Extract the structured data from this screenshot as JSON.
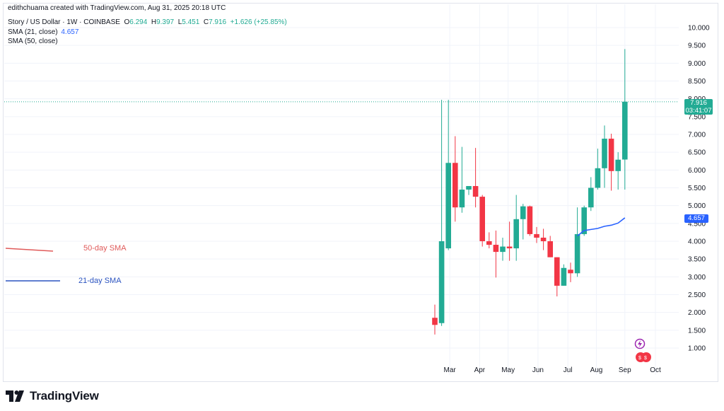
{
  "caption": "edithchuama created with TradingView.com, Aug 31, 2025 20:18 UTC",
  "header": {
    "symbol": "Story / US Dollar · 1W · COINBASE",
    "o_label": "O",
    "o": "6.294",
    "h_label": "H",
    "h": "9.397",
    "l_label": "L",
    "l": "5.451",
    "c_label": "C",
    "c": "7.916",
    "change": "+1.626 (+25.85%)"
  },
  "legend": [
    {
      "label": "SMA (21, close)",
      "value": "4.657"
    },
    {
      "label": "SMA (50, close)",
      "value": ""
    }
  ],
  "annotations": {
    "sma50_label": "50-day SMA",
    "sma21_label": "21-day SMA"
  },
  "price_tags": {
    "last_price": "7.916",
    "countdown": "03:41:07",
    "sma21": "4.657"
  },
  "colors": {
    "up": "#22ab94",
    "down": "#f23645",
    "sma21": "#2962ff",
    "sma50_annotation": "#e05a5a",
    "sma21_annotation": "#2b53c0",
    "grid": "#f0f3fa"
  },
  "footer": {
    "brand": "TradingView"
  },
  "chart_data": {
    "type": "candlestick",
    "ylim": [
      0.5,
      10.5
    ],
    "y_ticks": [
      "1.000",
      "1.500",
      "2.000",
      "2.500",
      "3.000",
      "3.500",
      "4.000",
      "4.500",
      "5.000",
      "5.500",
      "6.000",
      "6.500",
      "7.000",
      "7.500",
      "8.000",
      "8.500",
      "9.000",
      "9.500",
      "10.000"
    ],
    "x_ticks": [
      {
        "label": "Mar",
        "index": 2.2
      },
      {
        "label": "Apr",
        "index": 6.6
      },
      {
        "label": "May",
        "index": 10.8
      },
      {
        "label": "Jun",
        "index": 15.2
      },
      {
        "label": "Jul",
        "index": 19.6
      },
      {
        "label": "Aug",
        "index": 23.8
      },
      {
        "label": "Sep",
        "index": 28.0
      },
      {
        "label": "Oct",
        "index": 32.5
      }
    ],
    "candles": [
      {
        "o": 1.85,
        "h": 2.22,
        "l": 1.38,
        "c": 1.65
      },
      {
        "o": 1.7,
        "h": 7.97,
        "l": 1.62,
        "c": 4.0
      },
      {
        "o": 3.8,
        "h": 7.97,
        "l": 3.75,
        "c": 6.2
      },
      {
        "o": 6.2,
        "h": 6.95,
        "l": 4.55,
        "c": 4.95
      },
      {
        "o": 4.95,
        "h": 6.65,
        "l": 4.8,
        "c": 5.45
      },
      {
        "o": 5.45,
        "h": 5.5,
        "l": 5.3,
        "c": 5.55
      },
      {
        "o": 5.55,
        "h": 6.62,
        "l": 4.95,
        "c": 5.25
      },
      {
        "o": 5.25,
        "h": 5.3,
        "l": 3.85,
        "c": 4.0
      },
      {
        "o": 4.0,
        "h": 4.25,
        "l": 3.8,
        "c": 3.9
      },
      {
        "o": 3.9,
        "h": 4.3,
        "l": 2.98,
        "c": 3.7
      },
      {
        "o": 3.7,
        "h": 4.1,
        "l": 3.45,
        "c": 3.85
      },
      {
        "o": 3.85,
        "h": 4.55,
        "l": 3.45,
        "c": 3.8
      },
      {
        "o": 3.8,
        "h": 5.3,
        "l": 3.45,
        "c": 4.62
      },
      {
        "o": 4.62,
        "h": 5.05,
        "l": 4.05,
        "c": 4.98
      },
      {
        "o": 4.98,
        "h": 5.0,
        "l": 4.15,
        "c": 4.2
      },
      {
        "o": 4.2,
        "h": 4.4,
        "l": 3.95,
        "c": 4.1
      },
      {
        "o": 4.1,
        "h": 4.35,
        "l": 3.75,
        "c": 4.0
      },
      {
        "o": 4.0,
        "h": 4.15,
        "l": 3.55,
        "c": 3.55
      },
      {
        "o": 3.55,
        "h": 3.55,
        "l": 2.45,
        "c": 2.75
      },
      {
        "o": 2.75,
        "h": 3.35,
        "l": 2.75,
        "c": 3.25
      },
      {
        "o": 3.2,
        "h": 3.4,
        "l": 2.85,
        "c": 3.1
      },
      {
        "o": 3.1,
        "h": 4.95,
        "l": 3.0,
        "c": 4.2
      },
      {
        "o": 4.2,
        "h": 5.0,
        "l": 4.15,
        "c": 4.95
      },
      {
        "o": 4.95,
        "h": 5.8,
        "l": 4.85,
        "c": 5.5
      },
      {
        "o": 5.5,
        "h": 6.6,
        "l": 5.45,
        "c": 6.05
      },
      {
        "o": 6.05,
        "h": 7.25,
        "l": 5.5,
        "c": 6.88
      },
      {
        "o": 6.88,
        "h": 7.02,
        "l": 5.42,
        "c": 5.97
      },
      {
        "o": 5.97,
        "h": 6.5,
        "l": 5.45,
        "c": 6.29
      },
      {
        "o": 6.294,
        "h": 9.397,
        "l": 5.451,
        "c": 7.916
      }
    ],
    "sma21": [
      {
        "index": 21,
        "value": 4.15
      },
      {
        "index": 22,
        "value": 4.3
      },
      {
        "index": 23,
        "value": 4.33
      },
      {
        "index": 24,
        "value": 4.36
      },
      {
        "index": 25,
        "value": 4.42
      },
      {
        "index": 26,
        "value": 4.45
      },
      {
        "index": 27,
        "value": 4.51
      },
      {
        "index": 28,
        "value": 4.657
      }
    ],
    "last_price": 7.916
  }
}
